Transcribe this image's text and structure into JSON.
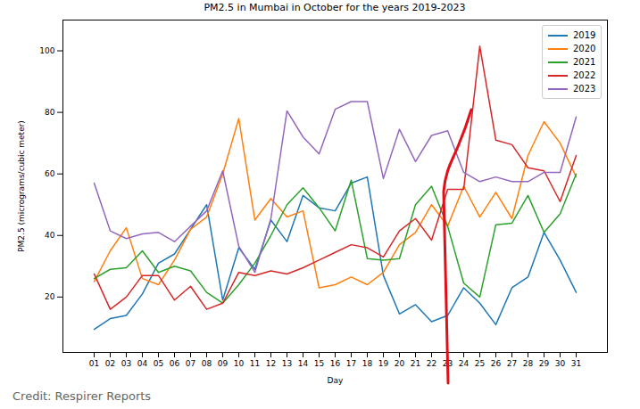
{
  "chart_data": {
    "type": "line",
    "title": "PM2.5 in Mumbai in October for the years 2019-2023",
    "x_label": "Day",
    "y_label": "PM2.5 (micrograms/cubic meter)",
    "caption": "Credit: Respirer Reports",
    "categories": [
      "01",
      "02",
      "03",
      "04",
      "05",
      "06",
      "07",
      "08",
      "09",
      "10",
      "11",
      "12",
      "13",
      "14",
      "15",
      "16",
      "17",
      "18",
      "19",
      "20",
      "21",
      "22",
      "23",
      "24",
      "25",
      "26",
      "27",
      "28",
      "29",
      "30",
      "31"
    ],
    "series": [
      {
        "name": "2019",
        "color": "#1f77b4",
        "values": [
          9.5,
          13,
          14,
          21,
          31,
          34,
          42,
          50,
          19,
          36,
          29,
          45,
          38,
          53,
          49,
          48,
          57,
          59,
          27,
          14.5,
          17.5,
          12,
          14,
          23,
          18,
          11,
          23,
          26.5,
          41,
          32,
          21.5
        ]
      },
      {
        "name": "2020",
        "color": "#ff7f0e",
        "values": [
          25,
          35,
          42.5,
          26,
          24,
          32,
          42,
          46,
          60,
          78,
          45,
          52,
          46,
          48,
          23,
          24,
          26.5,
          24,
          28,
          37,
          41,
          50,
          43,
          56,
          46,
          54,
          45.5,
          66,
          77,
          70,
          59
        ]
      },
      {
        "name": "2021",
        "color": "#2ca02c",
        "values": [
          26,
          29,
          29.5,
          35,
          28,
          30,
          28.5,
          21.5,
          18,
          24,
          31,
          40,
          50,
          55.5,
          49,
          41.5,
          58,
          32.5,
          32,
          32.5,
          50,
          56,
          43,
          24.5,
          20,
          43.5,
          44,
          53,
          41,
          47,
          60
        ]
      },
      {
        "name": "2022",
        "color": "#d62728",
        "values": [
          27.5,
          16,
          20,
          27,
          27,
          19,
          23.5,
          16,
          18,
          28,
          27,
          28.5,
          27.5,
          29.5,
          32,
          34.5,
          37,
          36,
          33,
          41.5,
          45.5,
          38.5,
          55,
          55,
          101.5,
          71,
          69.5,
          62,
          61,
          51,
          66
        ]
      },
      {
        "name": "2023",
        "color": "#9467bd",
        "values": [
          57,
          41.5,
          39,
          40.5,
          41,
          38,
          43,
          48,
          61,
          36.5,
          28,
          45.5,
          80.5,
          72,
          66.5,
          81,
          83.5,
          83.5,
          58.5,
          74.5,
          64,
          72.5,
          74,
          60.5,
          57.5,
          59,
          57.5,
          57.5,
          60.5,
          60.5,
          78.5
        ]
      }
    ],
    "ylim": [
      2,
      110
    ],
    "yticks": [
      20,
      40,
      60,
      80,
      100
    ],
    "grid": false,
    "legend": "upper right"
  }
}
